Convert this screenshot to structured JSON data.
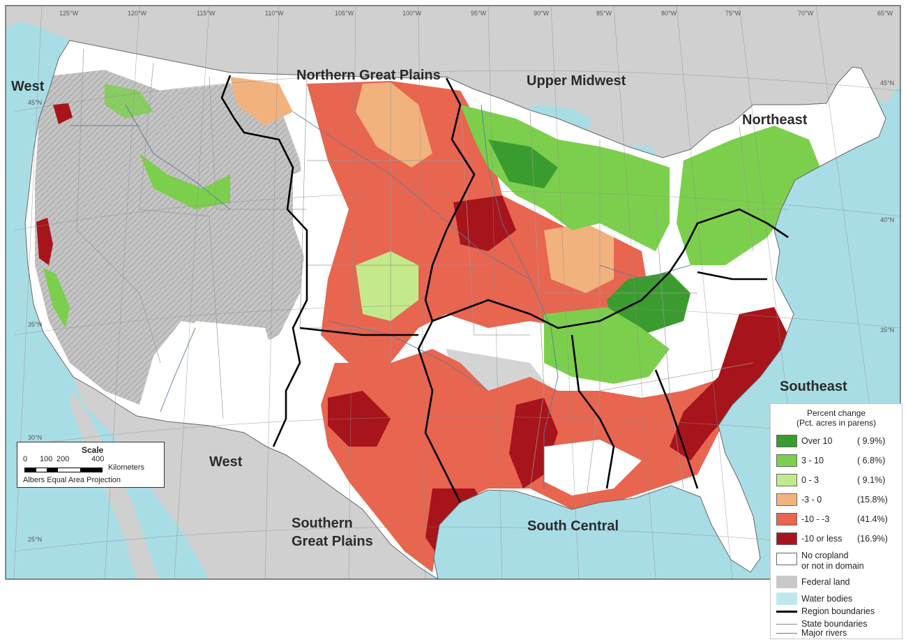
{
  "regions": {
    "northern_great_plains": "Northern Great Plains",
    "upper_midwest": "Upper Midwest",
    "northeast": "Northeast",
    "west_north": "West",
    "west_south": "West",
    "southeast": "Southeast",
    "south_central": "South Central",
    "southern_great_plains_1": "Southern",
    "southern_great_plains_2": "Great Plains"
  },
  "graticule": {
    "longitudes": [
      "125°W",
      "120°W",
      "115°W",
      "110°W",
      "105°W",
      "100°W",
      "95°W",
      "90°W",
      "85°W",
      "80°W",
      "75°W",
      "70°W",
      "65°W"
    ],
    "latitudes": [
      "45°N",
      "40°N",
      "35°N",
      "30°N",
      "25°N"
    ]
  },
  "scale": {
    "title": "Scale",
    "ticks": [
      "0",
      "100",
      "200",
      "400"
    ],
    "units": "Kilometers",
    "projection": "Albers Equal Area Projection"
  },
  "legend": {
    "title_line1": "Percent change",
    "title_line2": "(Pct. acres in parens)",
    "classes": [
      {
        "label": "Over 10",
        "pct": "( 9.9%)",
        "color": "#3a9c2e"
      },
      {
        "label": "3  -  10",
        "pct": "( 6.8%)",
        "color": "#7ccf4c"
      },
      {
        "label": "0  -  3",
        "pct": "( 9.1%)",
        "color": "#c4e98a"
      },
      {
        "label": "-3  -  0",
        "pct": "(15.8%)",
        "color": "#f2b27e"
      },
      {
        "label": "-10  -  -3",
        "pct": "(41.4%)",
        "color": "#e8654f"
      },
      {
        "label": "-10 or less",
        "pct": "(16.9%)",
        "color": "#a8141b"
      }
    ],
    "no_cropland_1": "No cropland",
    "no_cropland_2": "or not in domain",
    "federal": "Federal land",
    "water": "Water bodies",
    "region_boundaries": "Region boundaries",
    "state_boundaries": "State boundaries",
    "major_rivers": "Major rivers",
    "colors": {
      "no_cropland": "#ffffff",
      "federal": "#c9c9c9",
      "water": "#bfe8ee",
      "ocean": "#a9dde6",
      "land_outside": "#d0d0d0"
    }
  }
}
